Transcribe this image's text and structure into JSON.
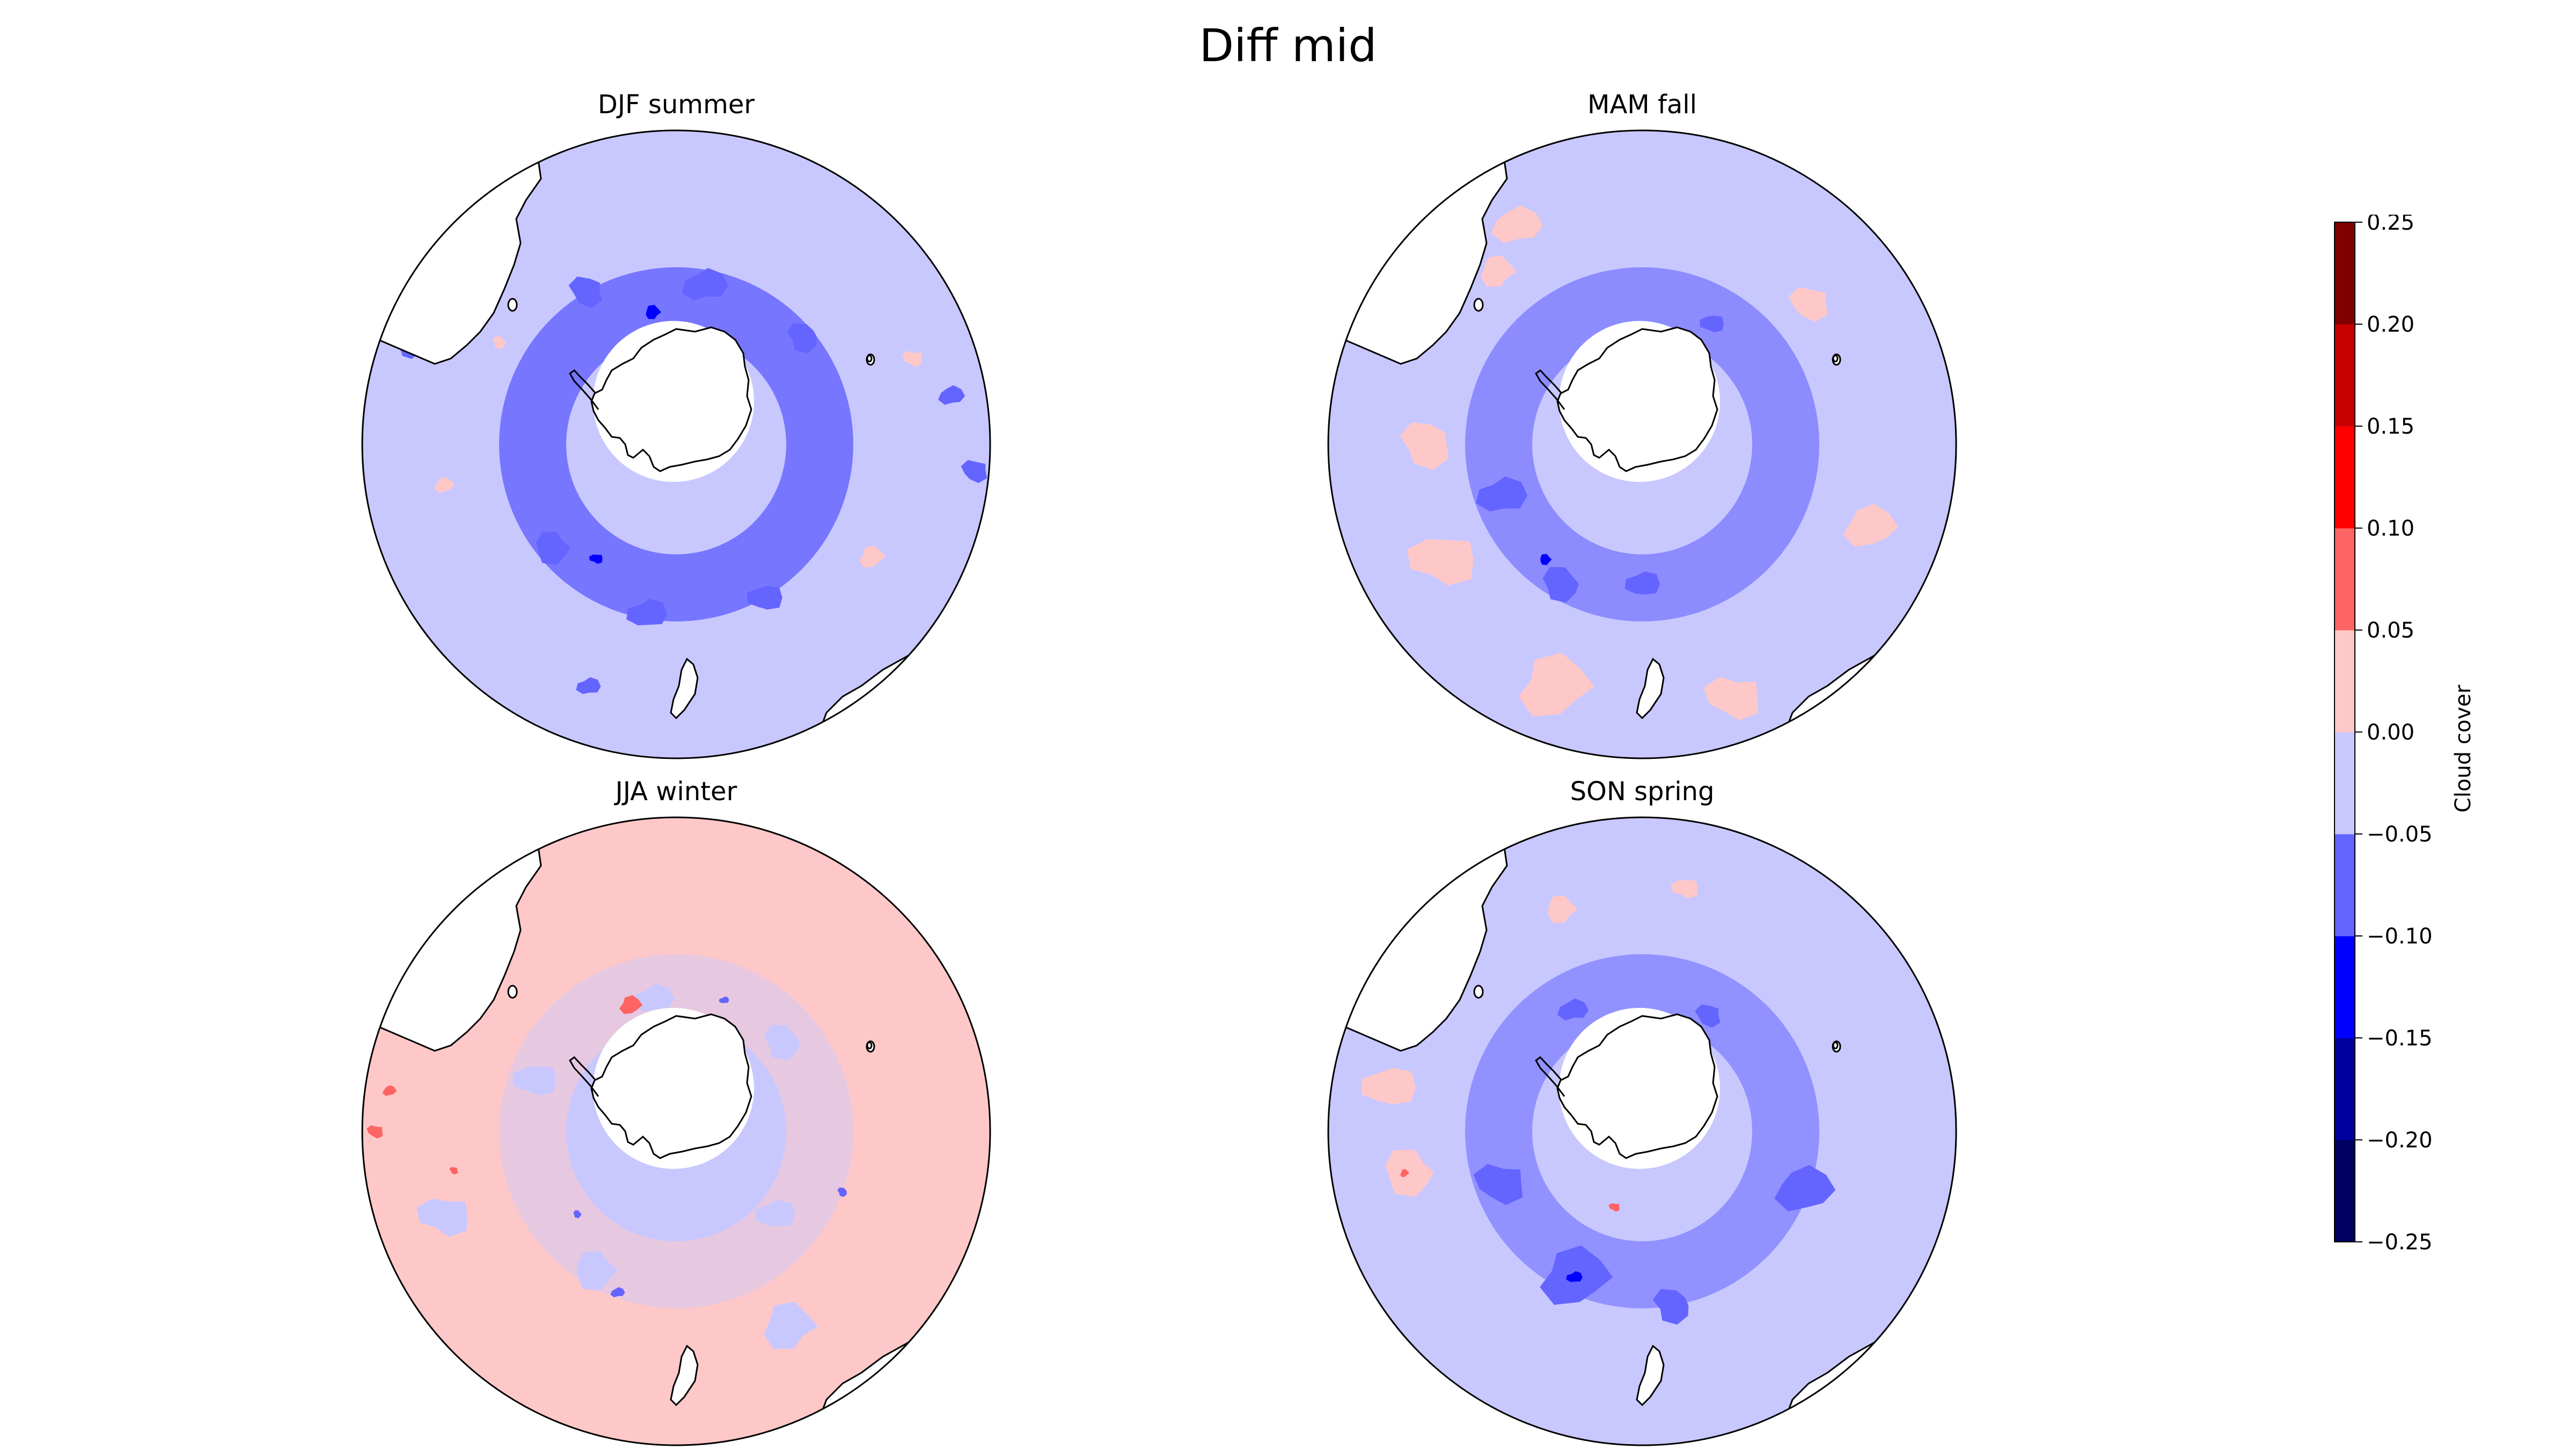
{
  "figure": {
    "title": "Diff mid"
  },
  "panels": [
    {
      "title": "DJF summer",
      "dominant_bin": 4,
      "scheme": "djf"
    },
    {
      "title": "MAM fall",
      "dominant_bin": 4,
      "scheme": "mam"
    },
    {
      "title": "JJA winter",
      "dominant_bin": 5,
      "scheme": "jja"
    },
    {
      "title": "SON spring",
      "dominant_bin": 4,
      "scheme": "son"
    }
  ],
  "colorbar": {
    "label": "Cloud cover",
    "ticks": [
      "0.25",
      "0.20",
      "0.15",
      "0.10",
      "0.05",
      "0.00",
      "−0.05",
      "−0.10",
      "−0.15",
      "−0.20",
      "−0.25"
    ],
    "levels": [
      -0.25,
      -0.2,
      -0.15,
      -0.1,
      -0.05,
      0,
      0.05,
      0.1,
      0.15,
      0.2,
      0.25
    ],
    "colors": [
      "#000060",
      "#00009e",
      "#0000ff",
      "#6464ff",
      "#c8c8ff",
      "#ffc8c8",
      "#ff6464",
      "#ff0000",
      "#c80000",
      "#800000"
    ]
  },
  "map_colors": {
    "land": "#ffffff",
    "coast": "#000000",
    "frame": "#000000"
  },
  "chart_data": {
    "type": "heatmap",
    "projection": "south-polar-stereographic",
    "variable": "Cloud cover",
    "vmin": -0.25,
    "vmax": 0.25,
    "levels": [
      -0.25,
      -0.2,
      -0.15,
      -0.1,
      -0.05,
      0,
      0.05,
      0.1,
      0.15,
      0.2,
      0.25
    ],
    "panels": [
      "DJF summer",
      "MAM fall",
      "JJA winter",
      "SON spring"
    ]
  }
}
